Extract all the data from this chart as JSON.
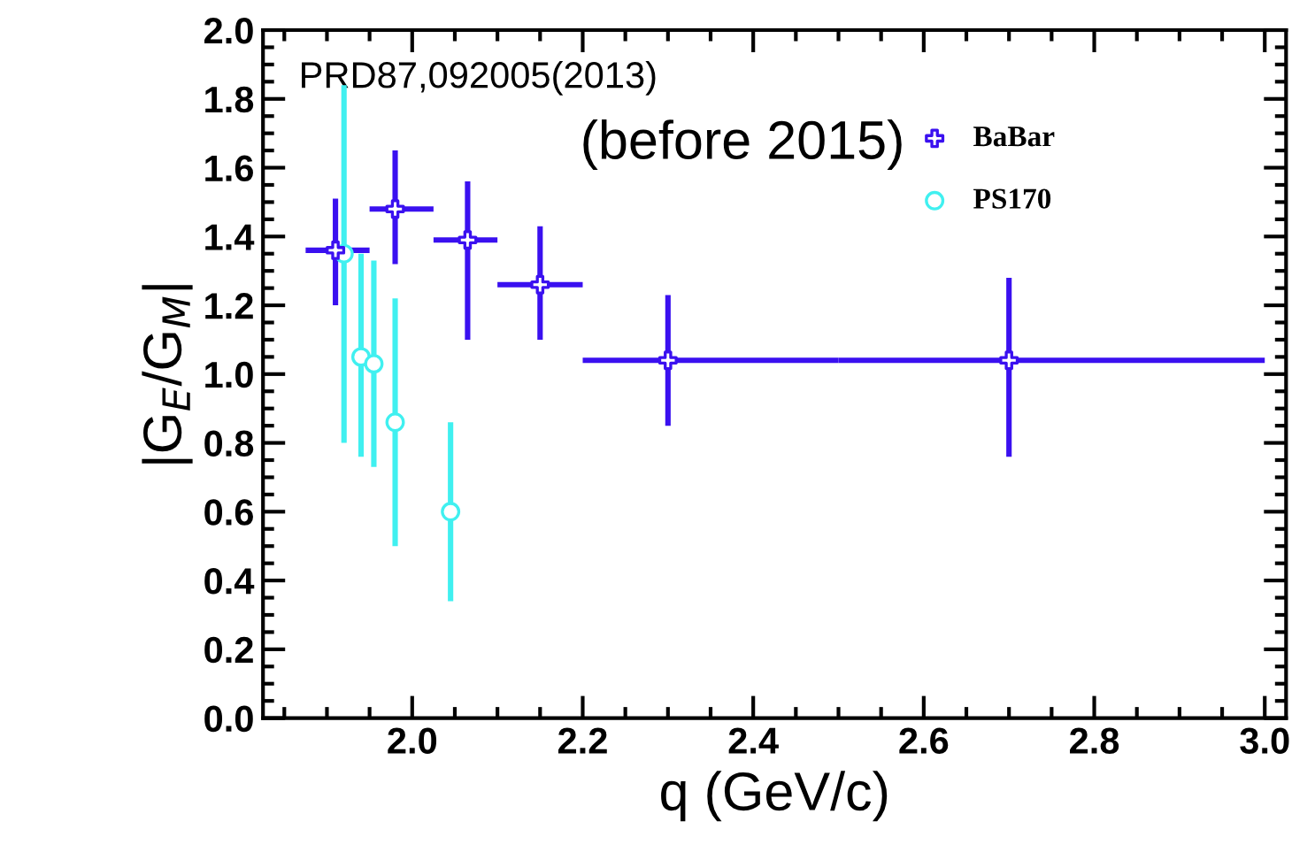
{
  "chart_data": {
    "type": "scatter",
    "xlabel": "q (GeV/c)",
    "ylabel": "|G$_{E}$/G$_{M}$|",
    "annotations": [
      "PRD87,092005(2013)",
      "(before 2015)"
    ],
    "xlim": [
      1.825,
      3.025
    ],
    "xticks": [
      {
        "value": 2.0,
        "label": "2.0"
      },
      2.2,
      2.4,
      2.6,
      2.8,
      {
        "value": 3.0,
        "label": "3.0"
      }
    ],
    "ylim": [
      0.0,
      2.0
    ],
    "yticks": [
      {
        "value": 0.0,
        "label": "0.0"
      },
      0.2,
      0.4,
      0.6,
      0.8,
      {
        "value": 1.0,
        "label": "1.0"
      },
      1.2,
      1.4,
      1.6,
      1.8,
      {
        "value": 2.0,
        "label": "2.0"
      }
    ],
    "grid": false,
    "legend": "top right",
    "series": [
      {
        "name": "BaBar",
        "color": "#3a10f0",
        "marker": "cross",
        "x": [
          1.91,
          1.98,
          2.065,
          2.15,
          2.3,
          2.7
        ],
        "values": [
          1.36,
          1.48,
          1.39,
          1.26,
          1.04,
          1.04
        ],
        "errors": [
          [
            1.2,
            1.51
          ],
          [
            1.32,
            1.65
          ],
          [
            1.1,
            1.56
          ],
          [
            1.1,
            1.43
          ],
          [
            0.85,
            1.23
          ],
          [
            0.76,
            1.28
          ]
        ],
        "xerrors": [
          [
            1.875,
            1.95
          ],
          [
            1.95,
            2.025
          ],
          [
            2.025,
            2.1
          ],
          [
            2.1,
            2.2
          ],
          [
            2.2,
            2.5
          ],
          [
            2.5,
            3.0
          ]
        ]
      },
      {
        "name": "PS170",
        "color": "#40f0f0",
        "marker": "circle",
        "x": [
          1.92,
          1.94,
          1.955,
          1.98,
          2.045
        ],
        "values": [
          1.35,
          1.05,
          1.03,
          0.86,
          0.6
        ],
        "errors": [
          [
            0.8,
            1.84
          ],
          [
            0.76,
            1.35
          ],
          [
            0.73,
            1.33
          ],
          [
            0.5,
            1.22
          ],
          [
            0.34,
            0.86
          ]
        ]
      }
    ]
  }
}
